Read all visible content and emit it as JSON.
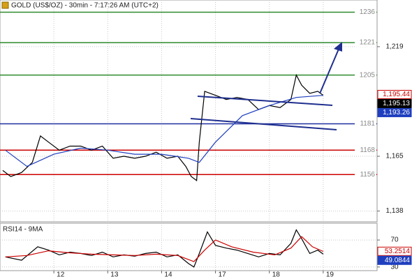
{
  "chart_data": [
    {
      "type": "line",
      "title": "GOLD (US$/OZ) - 30min - 7:17:26 AM (UTC+2)",
      "xlim": [
        0,
        7
      ],
      "xticks": [
        {
          "value": 1,
          "label": "12"
        },
        {
          "value": 2,
          "label": "13"
        },
        {
          "value": 3,
          "label": "14"
        },
        {
          "value": 4,
          "label": "17"
        },
        {
          "value": 5,
          "label": "18"
        },
        {
          "value": 6,
          "label": "19"
        }
      ],
      "ylim": [
        1132.7,
        1242
      ],
      "yticks": [
        {
          "value": 1219,
          "label": "1,219"
        },
        {
          "value": 1165,
          "label": "1,165"
        },
        {
          "value": 1138,
          "label": "1,138"
        }
      ],
      "grid": true,
      "series": [
        {
          "color": "#000000",
          "x": [
            0.05,
            0.2,
            0.4,
            0.6,
            0.75,
            0.9,
            1.1,
            1.3,
            1.5,
            1.7,
            1.9,
            2.1,
            2.3,
            2.5,
            2.7,
            2.9,
            3.1,
            3.3,
            3.45,
            3.55,
            3.65,
            3.7,
            3.8,
            4.0,
            4.2,
            4.4,
            4.6,
            4.8,
            5.0,
            5.2,
            5.4,
            5.5,
            5.6,
            5.75,
            5.9,
            6.0
          ],
          "values": [
            1158,
            1155,
            1157,
            1162,
            1175,
            1172,
            1168,
            1170,
            1170,
            1168,
            1170,
            1164,
            1165,
            1164,
            1165,
            1167,
            1164,
            1165,
            1160,
            1155,
            1153,
            1172,
            1197,
            1195,
            1193,
            1194,
            1193,
            1188,
            1190,
            1189,
            1193,
            1205,
            1200,
            1196,
            1197,
            1195
          ]
        },
        {
          "color": "#1f3fbf",
          "x": [
            0.1,
            0.5,
            1.0,
            1.5,
            2.0,
            2.5,
            3.0,
            3.5,
            3.7,
            4.0,
            4.5,
            5.0,
            5.5,
            6.0
          ],
          "values": [
            1168,
            1160,
            1166,
            1169,
            1168,
            1166,
            1166,
            1164,
            1162,
            1172,
            1185,
            1190,
            1194,
            1195
          ]
        }
      ],
      "levels": [
        {
          "value": 1236,
          "color": "#2e8b2e"
        },
        {
          "value": 1221,
          "color": "#2e8b2e"
        },
        {
          "value": 1205,
          "color": "#2e8b2e"
        },
        {
          "value": 1181,
          "color": "#1f2f9f"
        },
        {
          "value": 1168,
          "color": "#cc0000"
        },
        {
          "value": 1156,
          "color": "#cc0000"
        }
      ],
      "price_tags": [
        {
          "value": 1195.44,
          "label": "1,195.44",
          "color": "#cc0000",
          "style": "outline"
        },
        {
          "value": 1195.13,
          "label": "1,195.13",
          "color": "#000000",
          "style": "solid"
        },
        {
          "value": 1193.26,
          "label": "1,193.26",
          "color": "#1f3fbf",
          "style": "solid"
        }
      ]
    },
    {
      "type": "line",
      "title": "RSI14 - 9MA",
      "xlim": [
        0,
        7
      ],
      "ylim": [
        24.6,
        94.9
      ],
      "yticks": [
        70,
        30
      ],
      "grid": true,
      "series": [
        {
          "color": "#000000",
          "x": [
            0.1,
            0.4,
            0.7,
            0.9,
            1.1,
            1.3,
            1.5,
            1.7,
            1.9,
            2.1,
            2.3,
            2.5,
            2.7,
            2.9,
            3.1,
            3.3,
            3.5,
            3.6,
            3.7,
            3.85,
            4.0,
            4.2,
            4.4,
            4.6,
            4.8,
            5.0,
            5.2,
            5.4,
            5.5,
            5.6,
            5.75,
            5.9,
            6.0
          ],
          "values": [
            45,
            40,
            60,
            55,
            48,
            52,
            50,
            47,
            52,
            45,
            48,
            46,
            50,
            52,
            45,
            48,
            35,
            30,
            50,
            82,
            62,
            58,
            55,
            50,
            45,
            50,
            48,
            65,
            85,
            72,
            50,
            55,
            49
          ]
        },
        {
          "color": "#cc0000",
          "x": [
            0.1,
            0.5,
            0.9,
            1.3,
            1.7,
            2.1,
            2.5,
            2.9,
            3.3,
            3.6,
            3.8,
            4.0,
            4.3,
            4.7,
            5.1,
            5.4,
            5.6,
            5.8,
            6.0
          ],
          "values": [
            45,
            47,
            54,
            51,
            49,
            48,
            47,
            49,
            47,
            38,
            55,
            70,
            60,
            52,
            48,
            58,
            75,
            60,
            53
          ]
        }
      ],
      "price_tags": [
        {
          "value": 53.2514,
          "label": "53.2514",
          "color": "#cc0000",
          "style": "outline"
        },
        {
          "value": 49.0844,
          "label": "49.0844",
          "color": "#1f3fbf",
          "style": "solid"
        }
      ]
    }
  ]
}
